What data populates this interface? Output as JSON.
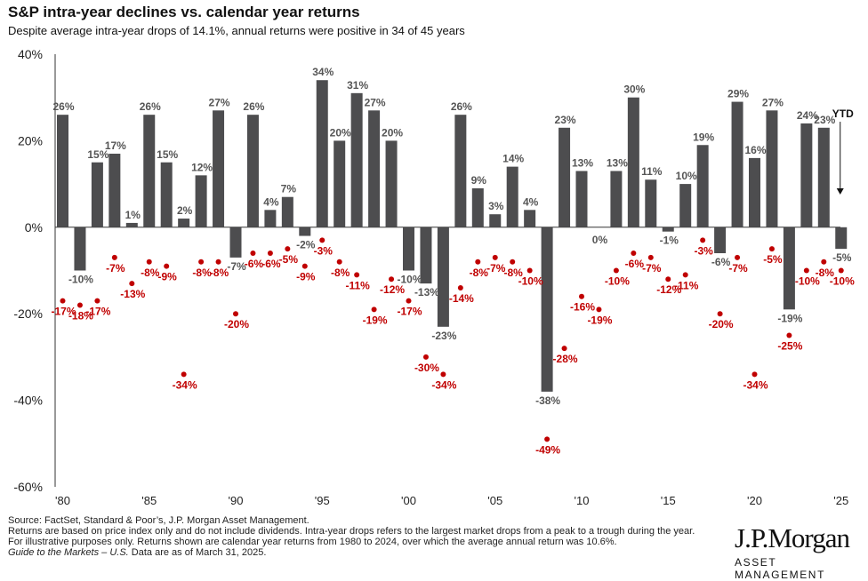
{
  "header": {
    "title": "S&P intra-year declines vs. calendar year returns",
    "subtitle": "Despite average intra-year drops of 14.1%, annual returns were positive in 34 of 45 years"
  },
  "footer": {
    "source": "Source: FactSet, Standard & Poor’s, J.P. Morgan Asset Management.",
    "note": "Returns are based on price index only and do not include dividends. Intra-year drops refers to the largest market drops from a peak to a trough during the year. For illustrative purposes only. Returns shown are calendar year returns from 1980 to 2024, over which the average annual return was 10.6%.",
    "guide_title": "Guide to the Markets – U.S.",
    "guide_date": " Data are as of March 31, 2025."
  },
  "logo": {
    "brand": "J.P.Morgan",
    "sub": "ASSET MANAGEMENT"
  },
  "chart_data": {
    "type": "bar",
    "ylim": [
      -60,
      40
    ],
    "yticks": [
      40,
      20,
      0,
      -20,
      -40,
      -60
    ],
    "ytick_labels": [
      "40%",
      "20%",
      "0%",
      "-20%",
      "-40%",
      "-60%"
    ],
    "xtick_labels": [
      {
        "index": 0,
        "label": "'80"
      },
      {
        "index": 5,
        "label": "'85"
      },
      {
        "index": 10,
        "label": "'90"
      },
      {
        "index": 15,
        "label": "'95"
      },
      {
        "index": 20,
        "label": "'00"
      },
      {
        "index": 25,
        "label": "'05"
      },
      {
        "index": 30,
        "label": "'10"
      },
      {
        "index": 35,
        "label": "'15"
      },
      {
        "index": 40,
        "label": "'20"
      },
      {
        "index": 45,
        "label": "'25"
      }
    ],
    "years": [
      1980,
      1981,
      1982,
      1983,
      1984,
      1985,
      1986,
      1987,
      1988,
      1989,
      1990,
      1991,
      1992,
      1993,
      1994,
      1995,
      1996,
      1997,
      1998,
      1999,
      2000,
      2001,
      2002,
      2003,
      2004,
      2005,
      2006,
      2007,
      2008,
      2009,
      2010,
      2011,
      2012,
      2013,
      2014,
      2015,
      2016,
      2017,
      2018,
      2019,
      2020,
      2021,
      2022,
      2023,
      2024,
      2025
    ],
    "annual_returns": [
      26,
      -10,
      15,
      17,
      1,
      26,
      15,
      2,
      12,
      27,
      -7,
      26,
      4,
      7,
      -2,
      34,
      20,
      31,
      27,
      20,
      -10,
      -13,
      -23,
      26,
      9,
      3,
      14,
      4,
      -38,
      23,
      13,
      0,
      13,
      30,
      11,
      -1,
      10,
      19,
      -6,
      29,
      16,
      27,
      -19,
      24,
      23,
      -5
    ],
    "intra_year_declines": [
      -17,
      -18,
      -17,
      -7,
      -13,
      -8,
      -9,
      -34,
      -8,
      -8,
      -20,
      -6,
      -6,
      -5,
      -9,
      -3,
      -8,
      -11,
      -19,
      -12,
      -17,
      -30,
      -34,
      -14,
      -8,
      -7,
      -8,
      -10,
      -49,
      -28,
      -16,
      -19,
      -10,
      -6,
      -7,
      -12,
      -11,
      -3,
      -20,
      -7,
      -34,
      -5,
      -25,
      -10,
      -8,
      -10
    ],
    "ytd_label": "YTD",
    "colors": {
      "bar": "#4d4d4f",
      "dot": "#c00000",
      "bar_label": "#555555",
      "dot_label": "#c00000",
      "axis": "#333333"
    }
  }
}
